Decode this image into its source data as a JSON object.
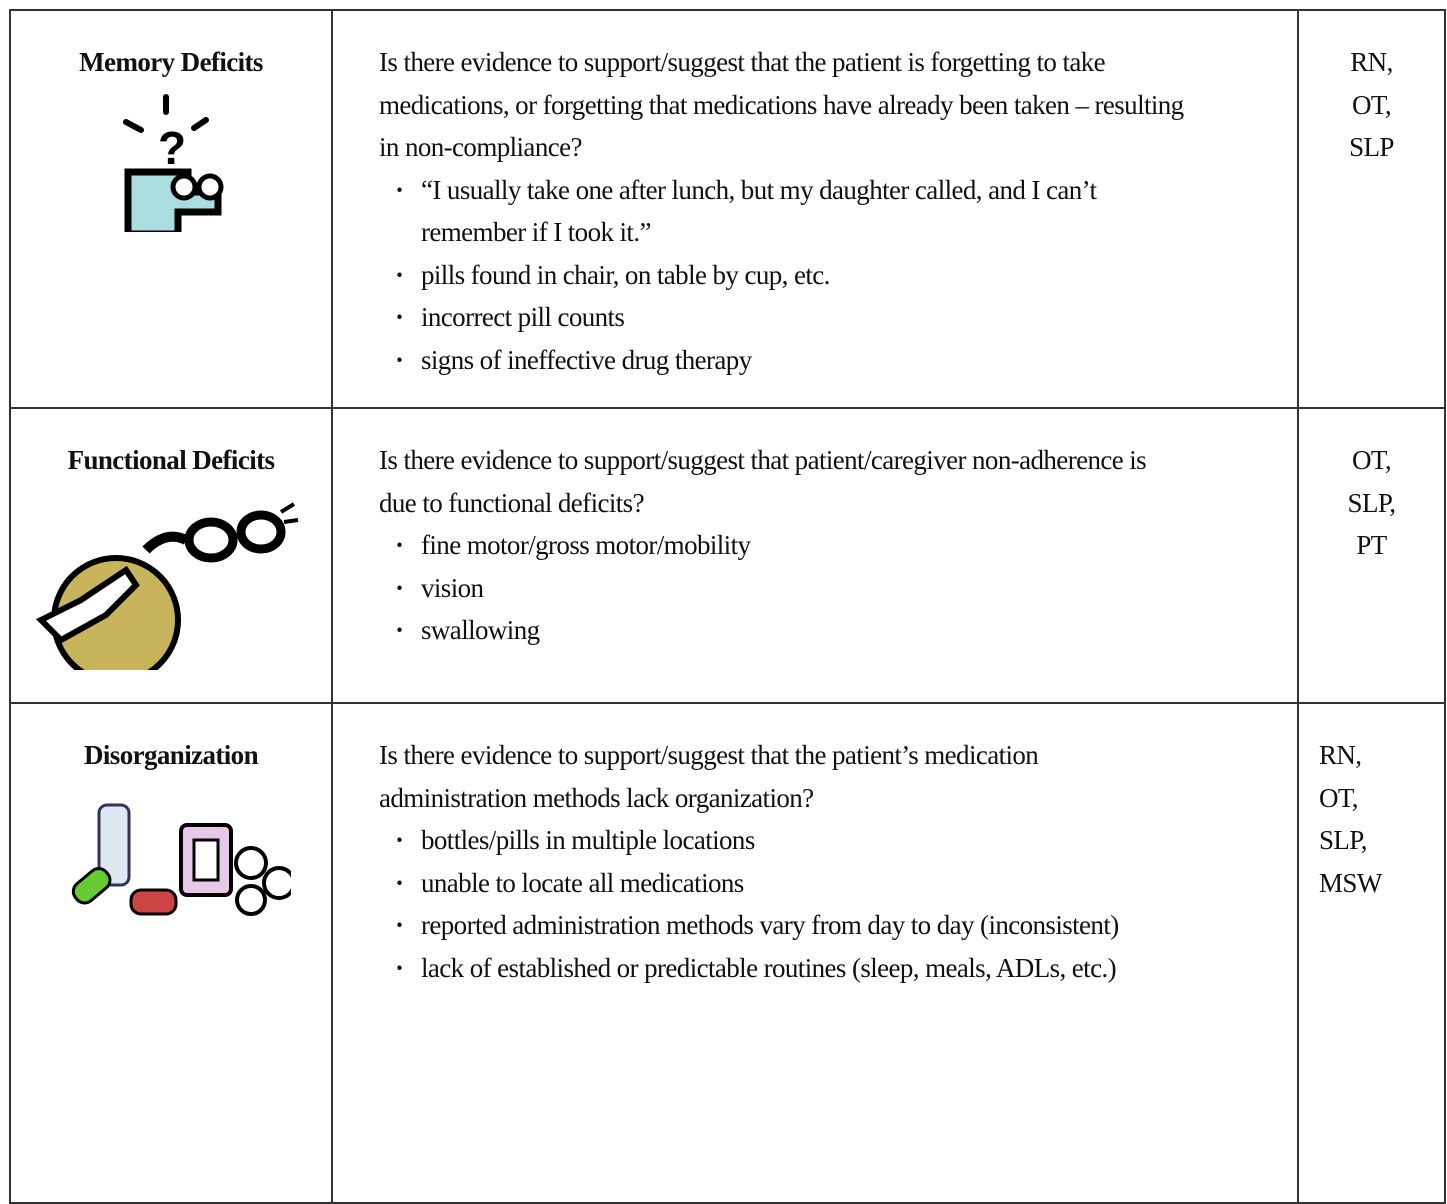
{
  "table": {
    "rows": [
      {
        "title": "Memory Deficits",
        "question": "Is there evidence to support/suggest that the patient is forgetting to take medications, or forgetting that medications have already been taken – resulting in non-compliance?",
        "bullets": [
          "“I usually take one after lunch, but my daughter called, and I can’t remember if I took it.”",
          "pills found in chair, on table by cup, etc.",
          "incorrect pill counts",
          "signs of ineffective drug therapy"
        ],
        "disciplines": [
          "RN,",
          "OT,",
          "SLP"
        ]
      },
      {
        "title": "Functional Deficits",
        "question": "Is there evidence to support/suggest that patient/caregiver non-adherence is due to functional deficits?",
        "bullets": [
          "fine motor/gross motor/mobility",
          "vision",
          "swallowing"
        ],
        "disciplines": [
          "OT,",
          "SLP,",
          "PT"
        ]
      },
      {
        "title": "Disorganization",
        "question": "Is there evidence to support/suggest that the patient’s medication administration methods lack organization?",
        "bullets": [
          "bottles/pills in multiple locations",
          "unable to locate all medications",
          "reported administration methods vary from day to day (inconsistent)",
          "lack of established or predictable routines (sleep, meals, ADLs, etc.)"
        ],
        "disciplines": [
          "RN,",
          "OT,",
          "SLP,",
          "MSW"
        ]
      }
    ]
  }
}
